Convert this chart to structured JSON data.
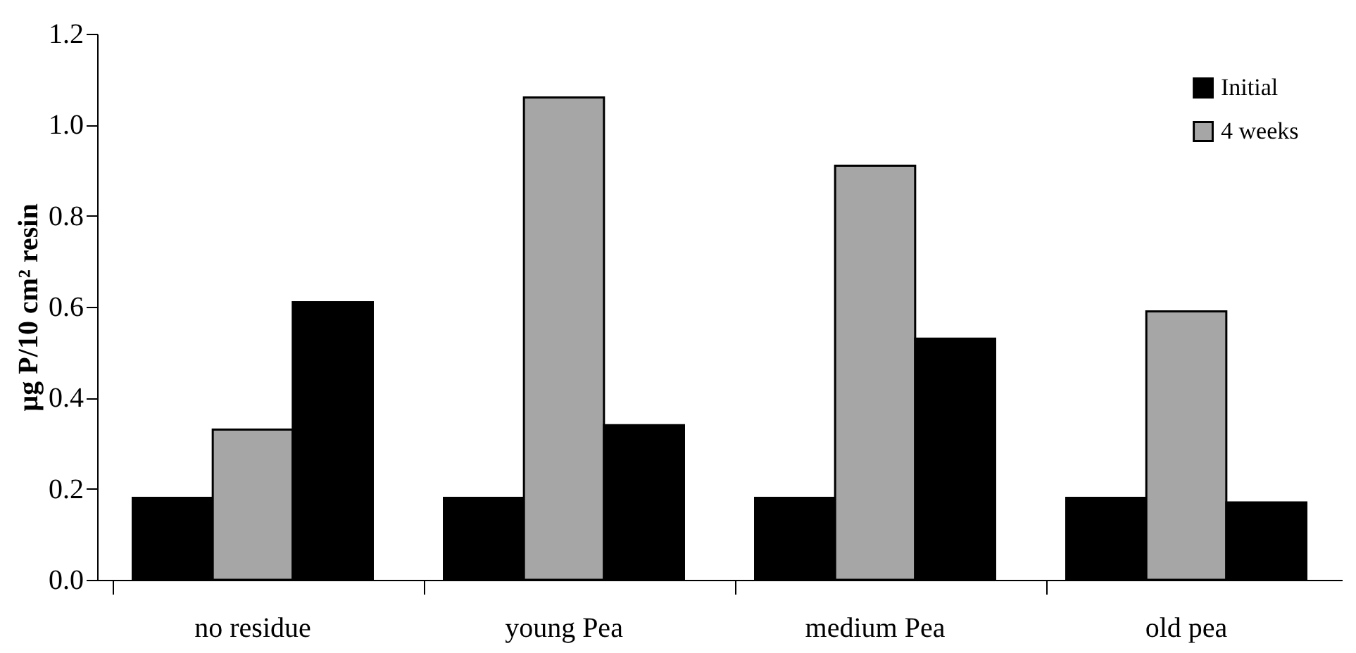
{
  "chart_data": {
    "type": "bar",
    "ylabel": "µg P/10 cm² resin",
    "categories": [
      "no residue",
      "young Pea",
      "medium Pea",
      "old pea"
    ],
    "series": [
      {
        "name": "Initial",
        "color": "#000000",
        "values": [
          0.18,
          0.18,
          0.18,
          0.18
        ]
      },
      {
        "name": "4 weeks",
        "color": "#a6a6a6",
        "values": [
          0.33,
          1.06,
          0.91,
          0.59
        ]
      },
      {
        "color": "#000000",
        "values": [
          0.61,
          0.34,
          0.53,
          0.17
        ]
      }
    ],
    "ylim": [
      0,
      1.2
    ],
    "yticks": [
      {
        "value": 0,
        "label": "0.0"
      },
      0.2,
      0.4,
      0.6,
      0.8,
      {
        "value": 1,
        "label": "1.0"
      },
      1.2
    ],
    "grid": false,
    "legend": "top right"
  }
}
